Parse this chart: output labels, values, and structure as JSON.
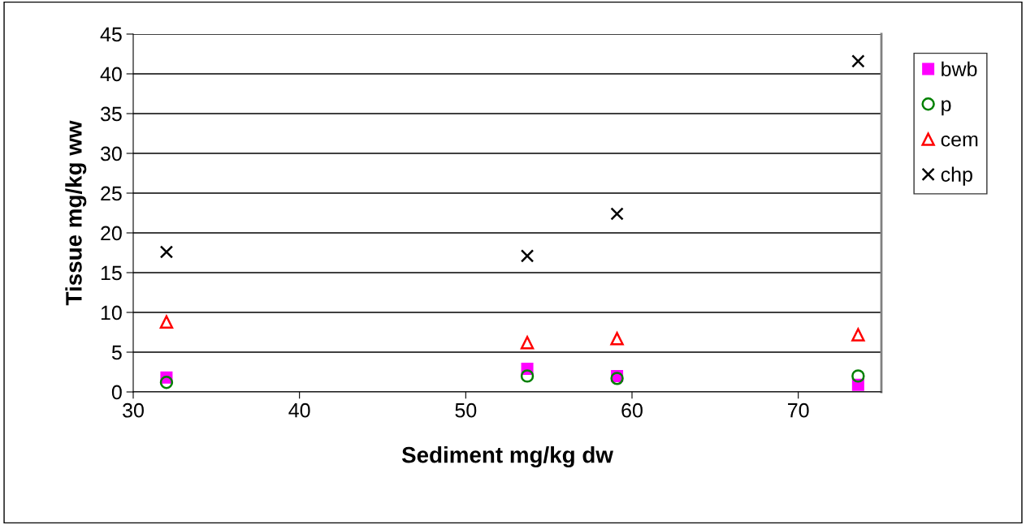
{
  "chart_data": {
    "type": "scatter",
    "xlabel": "Sediment mg/kg dw",
    "ylabel": "Tissue mg/kg ww",
    "x": [
      32.0,
      53.7,
      59.1,
      73.6
    ],
    "series": [
      {
        "name": "bwb",
        "color": "#ff00ff",
        "marker": "square",
        "values": [
          1.8,
          2.9,
          2.0,
          0.9
        ]
      },
      {
        "name": "p",
        "color": "#008000",
        "marker": "circle",
        "values": [
          1.2,
          2.0,
          1.7,
          2.0
        ]
      },
      {
        "name": "cem",
        "color": "#ff0000",
        "marker": "triangle",
        "values": [
          8.8,
          6.2,
          6.7,
          7.2
        ]
      },
      {
        "name": "chp",
        "color": "#000000",
        "marker": "cross",
        "values": [
          17.6,
          17.1,
          22.4,
          41.6
        ]
      }
    ],
    "xlim": [
      30,
      75
    ],
    "xticks": [
      30,
      40,
      50,
      60,
      70
    ],
    "ylim": [
      0,
      45
    ],
    "yticks": [
      0,
      5,
      10,
      15,
      20,
      25,
      30,
      35,
      40,
      45
    ],
    "grid": "y",
    "legend": "right"
  }
}
